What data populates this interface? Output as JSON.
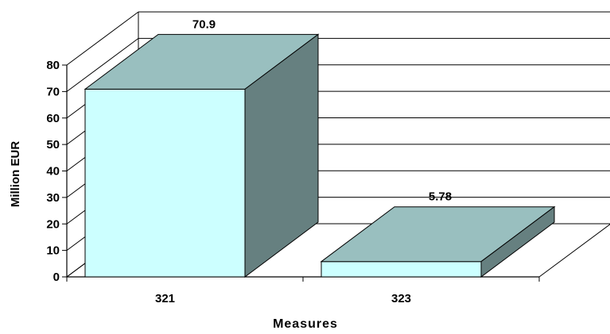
{
  "chart_data": {
    "type": "bar",
    "categories": [
      "321",
      "323"
    ],
    "values": [
      70.9,
      5.78
    ],
    "data_labels": [
      "70.9",
      "5.78"
    ],
    "title": "",
    "xlabel": "Measures",
    "ylabel": "Million EUR",
    "ylim": [
      0,
      80
    ],
    "yticks": [
      "0",
      "10",
      "20",
      "30",
      "40",
      "50",
      "60",
      "70",
      "80"
    ],
    "grid": true,
    "legend": "none",
    "style": "3d-column",
    "colors": {
      "front": "#ccffff",
      "top": "#99bfbf",
      "side": "#668080",
      "outline": "#000000",
      "background": "#ffffff"
    }
  }
}
